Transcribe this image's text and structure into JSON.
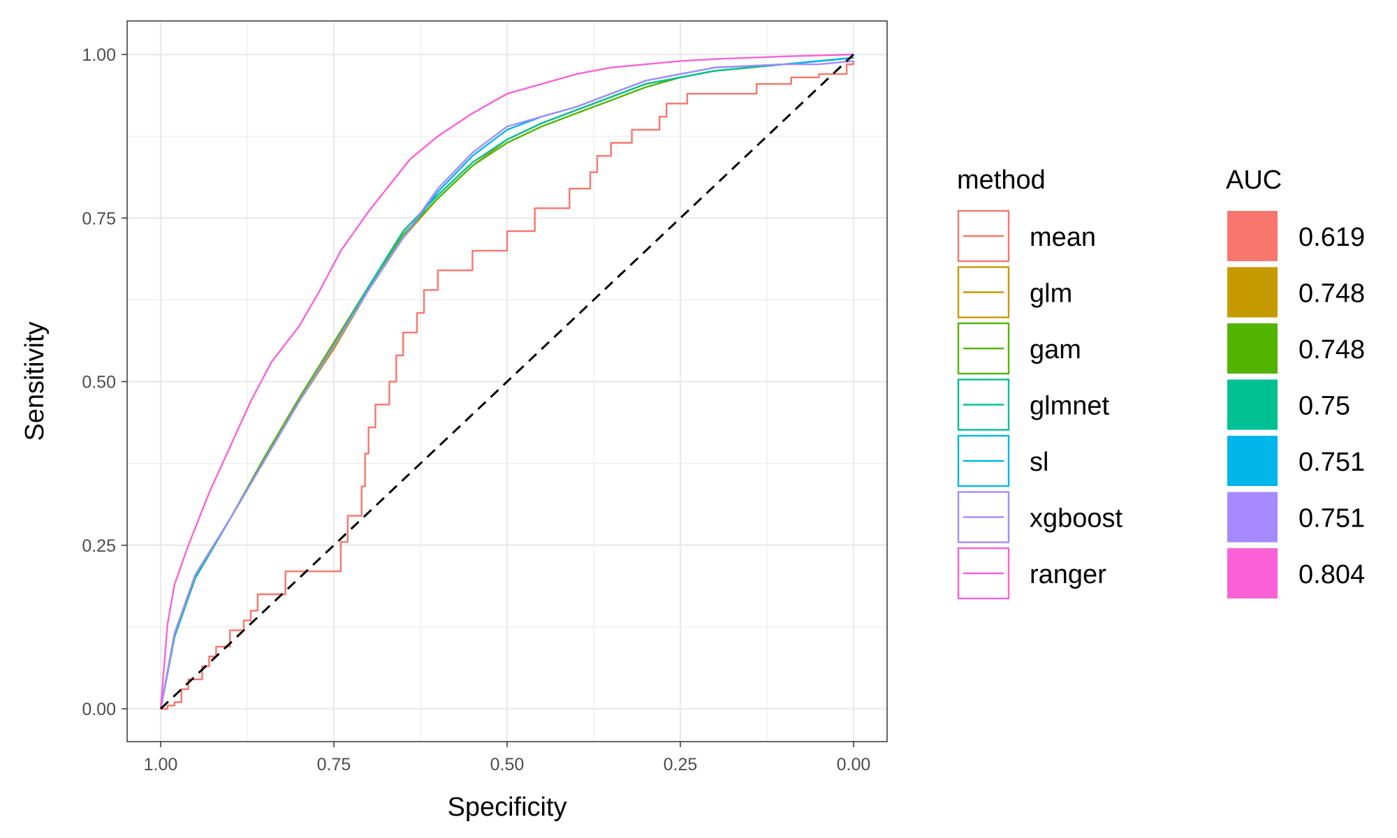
{
  "chart_data": {
    "type": "line",
    "xlabel": "Specificity",
    "ylabel": "Sensitivity",
    "xlim": [
      1.0,
      0.0
    ],
    "ylim": [
      0.0,
      1.0
    ],
    "x_reversed": true,
    "x_ticks": [
      "1.00",
      "0.75",
      "0.50",
      "0.25",
      "0.00"
    ],
    "y_ticks": [
      "0.00",
      "0.25",
      "0.50",
      "0.75",
      "1.00"
    ],
    "grid": true,
    "legend_position": "right",
    "reference_line": {
      "style": "dashed",
      "color": "#000000",
      "from": [
        1.0,
        0.0
      ],
      "to": [
        0.0,
        1.0
      ]
    },
    "legend": {
      "method_title": "method",
      "auc_title": "AUC"
    },
    "series": [
      {
        "name": "mean",
        "auc": "0.619",
        "color": "#F8766D",
        "step": true,
        "points": [
          [
            1.0,
            0.0
          ],
          [
            0.99,
            0.005
          ],
          [
            0.98,
            0.01
          ],
          [
            0.97,
            0.03
          ],
          [
            0.96,
            0.045
          ],
          [
            0.94,
            0.065
          ],
          [
            0.93,
            0.08
          ],
          [
            0.92,
            0.095
          ],
          [
            0.9,
            0.12
          ],
          [
            0.88,
            0.135
          ],
          [
            0.87,
            0.15
          ],
          [
            0.86,
            0.175
          ],
          [
            0.82,
            0.21
          ],
          [
            0.76,
            0.21
          ],
          [
            0.74,
            0.255
          ],
          [
            0.73,
            0.295
          ],
          [
            0.71,
            0.34
          ],
          [
            0.705,
            0.39
          ],
          [
            0.7,
            0.43
          ],
          [
            0.69,
            0.465
          ],
          [
            0.67,
            0.5
          ],
          [
            0.66,
            0.54
          ],
          [
            0.65,
            0.575
          ],
          [
            0.63,
            0.605
          ],
          [
            0.62,
            0.64
          ],
          [
            0.6,
            0.67
          ],
          [
            0.55,
            0.7
          ],
          [
            0.5,
            0.73
          ],
          [
            0.46,
            0.765
          ],
          [
            0.41,
            0.795
          ],
          [
            0.38,
            0.82
          ],
          [
            0.37,
            0.845
          ],
          [
            0.35,
            0.865
          ],
          [
            0.32,
            0.885
          ],
          [
            0.28,
            0.905
          ],
          [
            0.27,
            0.925
          ],
          [
            0.24,
            0.94
          ],
          [
            0.14,
            0.955
          ],
          [
            0.09,
            0.965
          ],
          [
            0.05,
            0.97
          ],
          [
            0.02,
            0.97
          ],
          [
            0.01,
            0.985
          ],
          [
            0.0,
            0.99
          ]
        ]
      },
      {
        "name": "glm",
        "auc": "0.748",
        "color": "#C49A00",
        "step": false,
        "points": [
          [
            1.0,
            0.0
          ],
          [
            0.98,
            0.11
          ],
          [
            0.95,
            0.2
          ],
          [
            0.9,
            0.29
          ],
          [
            0.85,
            0.38
          ],
          [
            0.8,
            0.47
          ],
          [
            0.75,
            0.55
          ],
          [
            0.7,
            0.64
          ],
          [
            0.65,
            0.72
          ],
          [
            0.6,
            0.78
          ],
          [
            0.55,
            0.83
          ],
          [
            0.5,
            0.87
          ],
          [
            0.45,
            0.895
          ],
          [
            0.4,
            0.915
          ],
          [
            0.35,
            0.935
          ],
          [
            0.3,
            0.955
          ],
          [
            0.25,
            0.965
          ],
          [
            0.2,
            0.975
          ],
          [
            0.1,
            0.985
          ],
          [
            0.05,
            0.99
          ],
          [
            0.0,
            0.995
          ]
        ]
      },
      {
        "name": "gam",
        "auc": "0.748",
        "color": "#53B400",
        "step": false,
        "points": [
          [
            1.0,
            0.0
          ],
          [
            0.98,
            0.11
          ],
          [
            0.95,
            0.2
          ],
          [
            0.9,
            0.29
          ],
          [
            0.85,
            0.385
          ],
          [
            0.8,
            0.475
          ],
          [
            0.75,
            0.56
          ],
          [
            0.7,
            0.645
          ],
          [
            0.65,
            0.725
          ],
          [
            0.6,
            0.78
          ],
          [
            0.55,
            0.83
          ],
          [
            0.5,
            0.865
          ],
          [
            0.45,
            0.89
          ],
          [
            0.4,
            0.91
          ],
          [
            0.35,
            0.93
          ],
          [
            0.3,
            0.95
          ],
          [
            0.25,
            0.965
          ],
          [
            0.2,
            0.975
          ],
          [
            0.1,
            0.985
          ],
          [
            0.05,
            0.99
          ],
          [
            0.0,
            0.995
          ]
        ]
      },
      {
        "name": "glmnet",
        "auc": "0.75",
        "color": "#00C094",
        "step": false,
        "points": [
          [
            1.0,
            0.0
          ],
          [
            0.98,
            0.11
          ],
          [
            0.95,
            0.2
          ],
          [
            0.9,
            0.29
          ],
          [
            0.85,
            0.38
          ],
          [
            0.8,
            0.47
          ],
          [
            0.75,
            0.555
          ],
          [
            0.7,
            0.645
          ],
          [
            0.65,
            0.73
          ],
          [
            0.6,
            0.785
          ],
          [
            0.55,
            0.835
          ],
          [
            0.5,
            0.87
          ],
          [
            0.45,
            0.895
          ],
          [
            0.4,
            0.915
          ],
          [
            0.35,
            0.935
          ],
          [
            0.3,
            0.955
          ],
          [
            0.25,
            0.965
          ],
          [
            0.2,
            0.975
          ],
          [
            0.1,
            0.985
          ],
          [
            0.05,
            0.99
          ],
          [
            0.0,
            0.995
          ]
        ]
      },
      {
        "name": "sl",
        "auc": "0.751",
        "color": "#00B6EB",
        "step": false,
        "points": [
          [
            1.0,
            0.0
          ],
          [
            0.98,
            0.115
          ],
          [
            0.95,
            0.205
          ],
          [
            0.9,
            0.29
          ],
          [
            0.85,
            0.38
          ],
          [
            0.8,
            0.47
          ],
          [
            0.75,
            0.555
          ],
          [
            0.7,
            0.64
          ],
          [
            0.65,
            0.72
          ],
          [
            0.6,
            0.79
          ],
          [
            0.55,
            0.845
          ],
          [
            0.5,
            0.885
          ],
          [
            0.45,
            0.905
          ],
          [
            0.4,
            0.92
          ],
          [
            0.35,
            0.94
          ],
          [
            0.3,
            0.96
          ],
          [
            0.25,
            0.97
          ],
          [
            0.2,
            0.98
          ],
          [
            0.1,
            0.985
          ],
          [
            0.05,
            0.99
          ],
          [
            0.0,
            0.995
          ]
        ]
      },
      {
        "name": "xgboost",
        "auc": "0.751",
        "color": "#A58AFF",
        "step": false,
        "points": [
          [
            1.0,
            0.0
          ],
          [
            0.98,
            0.115
          ],
          [
            0.95,
            0.205
          ],
          [
            0.9,
            0.29
          ],
          [
            0.85,
            0.38
          ],
          [
            0.8,
            0.47
          ],
          [
            0.75,
            0.555
          ],
          [
            0.7,
            0.64
          ],
          [
            0.65,
            0.72
          ],
          [
            0.6,
            0.795
          ],
          [
            0.55,
            0.85
          ],
          [
            0.5,
            0.89
          ],
          [
            0.45,
            0.905
          ],
          [
            0.4,
            0.92
          ],
          [
            0.35,
            0.94
          ],
          [
            0.3,
            0.96
          ],
          [
            0.25,
            0.97
          ],
          [
            0.2,
            0.98
          ],
          [
            0.1,
            0.985
          ],
          [
            0.05,
            0.985
          ],
          [
            0.0,
            0.99
          ]
        ]
      },
      {
        "name": "ranger",
        "auc": "0.804",
        "color": "#FB61D7",
        "step": false,
        "points": [
          [
            1.0,
            0.0
          ],
          [
            0.99,
            0.13
          ],
          [
            0.98,
            0.19
          ],
          [
            0.96,
            0.25
          ],
          [
            0.93,
            0.33
          ],
          [
            0.9,
            0.4
          ],
          [
            0.87,
            0.47
          ],
          [
            0.84,
            0.53
          ],
          [
            0.8,
            0.585
          ],
          [
            0.77,
            0.64
          ],
          [
            0.74,
            0.7
          ],
          [
            0.7,
            0.76
          ],
          [
            0.67,
            0.8
          ],
          [
            0.64,
            0.84
          ],
          [
            0.6,
            0.875
          ],
          [
            0.55,
            0.91
          ],
          [
            0.5,
            0.94
          ],
          [
            0.45,
            0.955
          ],
          [
            0.4,
            0.97
          ],
          [
            0.35,
            0.98
          ],
          [
            0.3,
            0.985
          ],
          [
            0.25,
            0.99
          ],
          [
            0.2,
            0.993
          ],
          [
            0.1,
            0.997
          ],
          [
            0.0,
            1.0
          ]
        ]
      }
    ]
  }
}
